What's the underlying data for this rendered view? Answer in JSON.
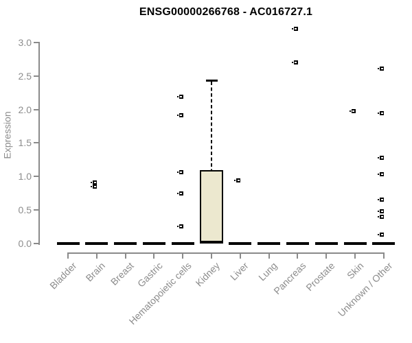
{
  "chart_data": {
    "type": "boxplot",
    "title": "ENSG00000266768 - AC016727.1",
    "ylabel": "Expression",
    "xlabel": "",
    "ylim": [
      0,
      3.25
    ],
    "yticks": [
      "0.0",
      "0.5",
      "1.0",
      "1.5",
      "2.0",
      "2.5",
      "3.0"
    ],
    "grid": false,
    "legend": "none",
    "colors": {
      "box_fill": "#ece8cf",
      "box_border": "#000000",
      "axis": "#8a8a8a",
      "labels": "#8c8c8c",
      "title": "#000000",
      "points": "#000000",
      "background": "#ffffff"
    },
    "categories": [
      "Bladder",
      "Brain",
      "Breast",
      "Gastric",
      "Hematopoietic cells",
      "Kidney",
      "Liver",
      "Lung",
      "Pancreas",
      "Prostate",
      "Skin",
      "Unknown / Other"
    ],
    "series": [
      {
        "category": "Bladder",
        "median": 0.0,
        "q1": 0.0,
        "q3": 0.0,
        "whisker_low": 0.0,
        "whisker_high": 0.0,
        "outliers": []
      },
      {
        "category": "Brain",
        "median": 0.0,
        "q1": 0.0,
        "q3": 0.0,
        "whisker_low": 0.0,
        "whisker_high": 0.0,
        "outliers": [
          0.91,
          0.85
        ]
      },
      {
        "category": "Breast",
        "median": 0.0,
        "q1": 0.0,
        "q3": 0.0,
        "whisker_low": 0.0,
        "whisker_high": 0.0,
        "outliers": []
      },
      {
        "category": "Gastric",
        "median": 0.0,
        "q1": 0.0,
        "q3": 0.0,
        "whisker_low": 0.0,
        "whisker_high": 0.0,
        "outliers": []
      },
      {
        "category": "Hematopoietic cells",
        "median": 0.0,
        "q1": 0.0,
        "q3": 0.0,
        "whisker_low": 0.0,
        "whisker_high": 0.0,
        "outliers": [
          2.19,
          1.91,
          1.06,
          0.75,
          0.26
        ]
      },
      {
        "category": "Kidney",
        "median": 0.02,
        "q1": 0.02,
        "q3": 1.1,
        "whisker_low": 0.02,
        "whisker_high": 2.43,
        "outliers": []
      },
      {
        "category": "Liver",
        "median": 0.0,
        "q1": 0.0,
        "q3": 0.0,
        "whisker_low": 0.0,
        "whisker_high": 0.0,
        "outliers": [
          0.94
        ]
      },
      {
        "category": "Lung",
        "median": 0.0,
        "q1": 0.0,
        "q3": 0.0,
        "whisker_low": 0.0,
        "whisker_high": 0.0,
        "outliers": []
      },
      {
        "category": "Pancreas",
        "median": 0.0,
        "q1": 0.0,
        "q3": 0.0,
        "whisker_low": 0.0,
        "whisker_high": 0.0,
        "outliers": [
          3.2,
          2.7
        ]
      },
      {
        "category": "Prostate",
        "median": 0.0,
        "q1": 0.0,
        "q3": 0.0,
        "whisker_low": 0.0,
        "whisker_high": 0.0,
        "outliers": []
      },
      {
        "category": "Skin",
        "median": 0.0,
        "q1": 0.0,
        "q3": 0.0,
        "whisker_low": 0.0,
        "whisker_high": 0.0,
        "outliers": [
          1.98
        ]
      },
      {
        "category": "Unknown / Other",
        "median": 0.0,
        "q1": 0.0,
        "q3": 0.0,
        "whisker_low": 0.0,
        "whisker_high": 0.0,
        "outliers": [
          2.61,
          1.95,
          1.28,
          1.03,
          0.66,
          0.48,
          0.4,
          0.13
        ]
      }
    ]
  }
}
